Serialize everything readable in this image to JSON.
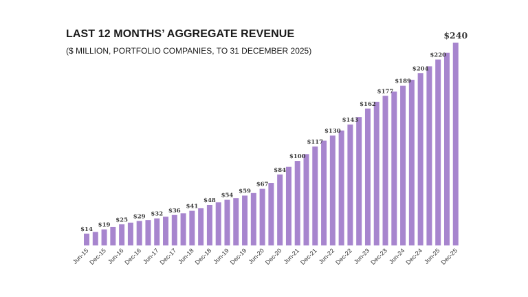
{
  "title": "LAST 12 MONTHS’ AGGREGATE REVENUE",
  "subtitle": "($ MILLION, PORTFOLIO COMPANIES, TO 31 DECEMBER 2025)",
  "colors": {
    "bar": "#a785ce",
    "text": "#1a1a1a"
  },
  "chart_data": {
    "type": "bar",
    "title": "LAST 12 MONTHS’ AGGREGATE REVENUE",
    "subtitle": "($ MILLION, PORTFOLIO COMPANIES, TO 31 DECEMBER 2025)",
    "unit": "$ million",
    "ylim": [
      0,
      240
    ],
    "grid": false,
    "categories": [
      "Jun-15",
      "Sep-15",
      "Dec-15",
      "Mar-16",
      "Jun-16",
      "Sep-16",
      "Dec-16",
      "Mar-17",
      "Jun-17",
      "Sep-17",
      "Dec-17",
      "Mar-18",
      "Jun-18",
      "Sep-18",
      "Dec-18",
      "Mar-19",
      "Jun-19",
      "Sep-19",
      "Dec-19",
      "Mar-20",
      "Jun-20",
      "Sep-20",
      "Dec-20",
      "Mar-21",
      "Jun-21",
      "Sep-21",
      "Dec-21",
      "Mar-22",
      "Jun-22",
      "Sep-22",
      "Dec-22",
      "Mar-23",
      "Jun-23",
      "Sep-23",
      "Dec-23",
      "Mar-24",
      "Jun-24",
      "Sep-24",
      "Dec-24",
      "Mar-25",
      "Jun-25",
      "Sep-25",
      "Dec-25"
    ],
    "tick_labels": [
      "Jun-15",
      "Dec-15",
      "Jun-16",
      "Dec-16",
      "Jun-17",
      "Dec-17",
      "Jun-18",
      "Dec-18",
      "Jun-19",
      "Dec-19",
      "Jun-20",
      "Dec-20",
      "Jun-21",
      "Dec-21",
      "Jun-22",
      "Dec-22",
      "Jun-23",
      "Dec-23",
      "Jun-24",
      "Dec-24",
      "Jun-25",
      "Dec-25"
    ],
    "values": [
      14,
      16,
      19,
      22,
      25,
      27,
      29,
      30,
      32,
      34,
      36,
      38,
      41,
      44,
      48,
      51,
      54,
      56,
      59,
      62,
      67,
      74,
      84,
      93,
      100,
      108,
      117,
      124,
      130,
      136,
      143,
      152,
      162,
      170,
      177,
      182,
      189,
      196,
      204,
      212,
      220,
      228,
      240
    ],
    "data_labels": [
      {
        "index": 0,
        "text": "$14"
      },
      {
        "index": 2,
        "text": "$19"
      },
      {
        "index": 4,
        "text": "$25"
      },
      {
        "index": 6,
        "text": "$29"
      },
      {
        "index": 8,
        "text": "$32"
      },
      {
        "index": 10,
        "text": "$36"
      },
      {
        "index": 12,
        "text": "$41"
      },
      {
        "index": 14,
        "text": "$48"
      },
      {
        "index": 16,
        "text": "$54"
      },
      {
        "index": 18,
        "text": "$59"
      },
      {
        "index": 20,
        "text": "$67"
      },
      {
        "index": 22,
        "text": "$84"
      },
      {
        "index": 24,
        "text": "$100"
      },
      {
        "index": 26,
        "text": "$117"
      },
      {
        "index": 28,
        "text": "$130"
      },
      {
        "index": 30,
        "text": "$143"
      },
      {
        "index": 32,
        "text": "$162"
      },
      {
        "index": 34,
        "text": "$177"
      },
      {
        "index": 36,
        "text": "$189"
      },
      {
        "index": 38,
        "text": "$204"
      },
      {
        "index": 40,
        "text": "$220"
      },
      {
        "index": 42,
        "text": "$240"
      }
    ]
  }
}
